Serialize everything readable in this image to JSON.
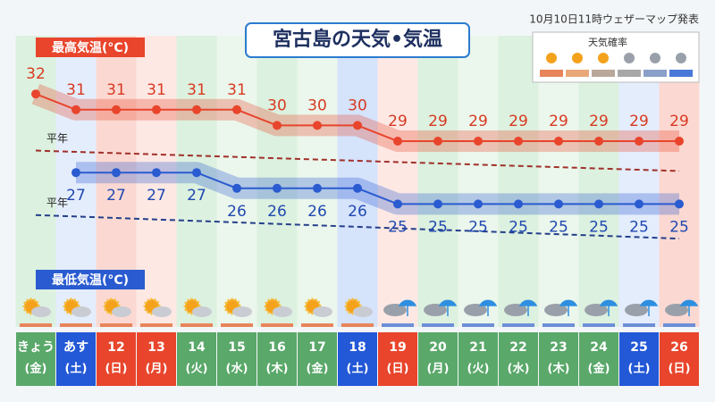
{
  "chart_data": {
    "type": "line",
    "title": "宮古島の天気•気温",
    "source": "10月10日11時ウェザーマップ発表",
    "legend_title": "天気確率",
    "categories": [
      "きょう",
      "あす",
      "12",
      "13",
      "14",
      "15",
      "16",
      "17",
      "18",
      "19",
      "20",
      "21",
      "22",
      "23",
      "24",
      "25",
      "26"
    ],
    "weekdays": [
      "(金)",
      "(土)",
      "(日)",
      "(月)",
      "(火)",
      "(水)",
      "(木)",
      "(金)",
      "(土)",
      "(日)",
      "(月)",
      "(火)",
      "(水)",
      "(木)",
      "(金)",
      "(土)",
      "(日)"
    ],
    "series": [
      {
        "name": "最高気温(°C)",
        "color": "#e8452c",
        "values": [
          32,
          31,
          31,
          31,
          31,
          31,
          30,
          30,
          30,
          29,
          29,
          29,
          29,
          29,
          29,
          29,
          29
        ]
      },
      {
        "name": "最低気温(°C)",
        "color": "#2a5bd0",
        "values": [
          null,
          27,
          27,
          27,
          27,
          26,
          26,
          26,
          26,
          25,
          25,
          25,
          25,
          25,
          25,
          25,
          25
        ]
      }
    ],
    "normals": [
      {
        "name": "平年",
        "color": "#a0302a",
        "values": [
          28.4,
          27.1
        ]
      },
      {
        "name": "平年",
        "color": "#243f8a",
        "values": [
          24.3,
          22.8
        ]
      }
    ],
    "ylim": [
      21.5,
      34
    ]
  }
}
